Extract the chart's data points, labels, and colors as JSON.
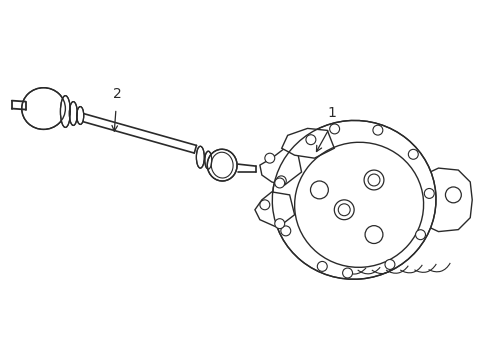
{
  "bg_color": "#ffffff",
  "line_color": "#2a2a2a",
  "lw": 1.0,
  "label1_text": "1",
  "label2_text": "2",
  "figsize": [
    4.89,
    3.6
  ],
  "dpi": 100
}
